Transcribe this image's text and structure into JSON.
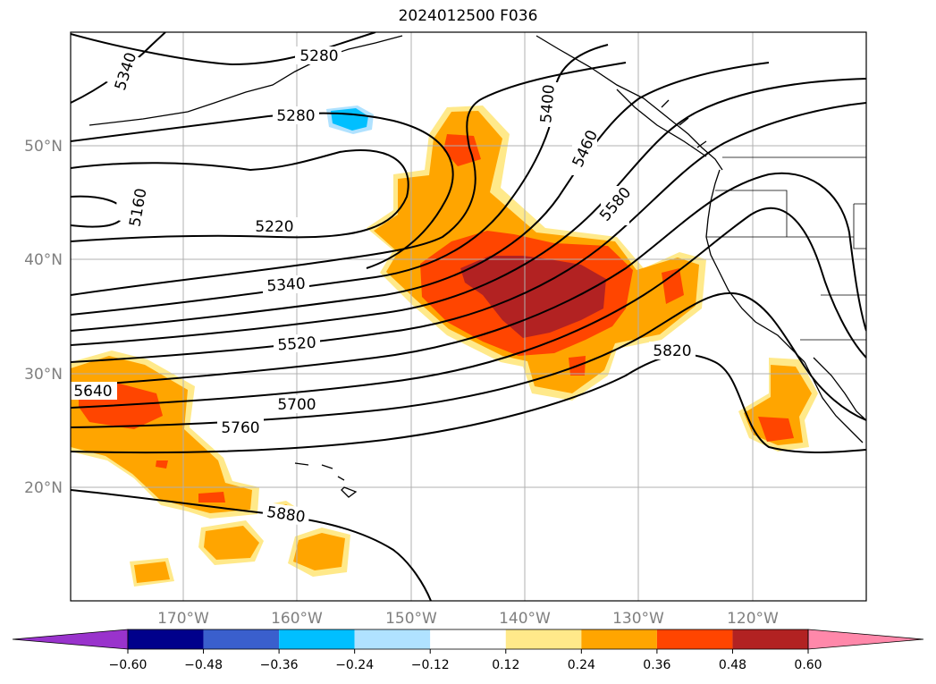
{
  "title": "2024012500 F036",
  "map": {
    "lat_labels": [
      "50°N",
      "40°N",
      "30°N",
      "20°N"
    ],
    "lon_labels": [
      "170°W",
      "160°W",
      "150°W",
      "140°W",
      "130°W",
      "120°W"
    ],
    "contour_labels": [
      "5340",
      "5280",
      "5280",
      "5160",
      "5220",
      "5340",
      "5400",
      "5460",
      "5580",
      "5520",
      "5640",
      "5700",
      "5760",
      "5820",
      "5880"
    ],
    "line_color": "#000000",
    "coast_color": "#000000",
    "grid_color": "#b0b0b0"
  },
  "colorbar": {
    "ticks": [
      "−0.60",
      "−0.48",
      "−0.36",
      "−0.24",
      "−0.12",
      "0.12",
      "0.24",
      "0.36",
      "0.48",
      "0.60"
    ],
    "colors": [
      "#9933cc",
      "#00008b",
      "#3a5fcd",
      "#00bfff",
      "#b0e2ff",
      "#ffffff",
      "#ffe98a",
      "#ffa500",
      "#ff4500",
      "#b22222",
      "#ff88aa"
    ]
  }
}
